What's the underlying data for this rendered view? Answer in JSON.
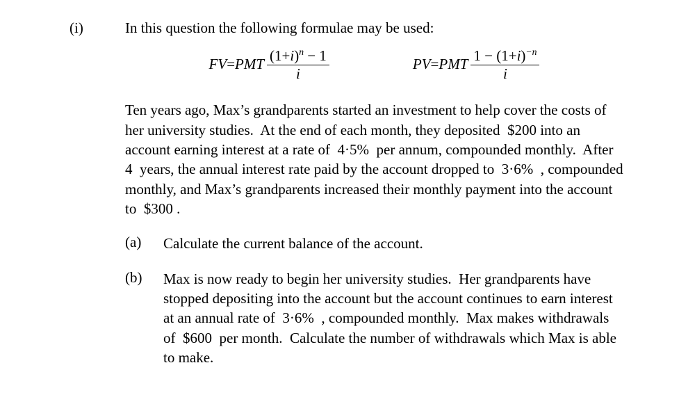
{
  "font": {
    "family": "Times New Roman",
    "size_pt": 16,
    "color": "#000000"
  },
  "background_color": "#ffffff",
  "question_label": "(i)",
  "intro_text": "In this question the following formulae may be used:",
  "formula_fv": {
    "lhs": "FV",
    "eq": " = ",
    "rhs_a": "PMT",
    "num_a": "(1+",
    "num_b": "i",
    "num_c": ")",
    "num_exp": "n",
    "num_d": " − 1",
    "den": "i"
  },
  "formula_pv": {
    "lhs": "PV",
    "eq": " = ",
    "rhs_a": "PMT",
    "num_a": "1 − (1+",
    "num_b": "i",
    "num_c": ")",
    "num_exp": "−n",
    "den": "i"
  },
  "body_para": "Ten years ago, Max’s grandparents started an investment to help cover the costs of her university studies.  At the end of each month, they deposited  $200 into an account earning interest at a rate of  4·5%  per annum, compounded monthly.  After  4  years, the annual interest rate paid by the account dropped to  3·6%  , compounded monthly, and Max’s grandparents increased their monthly payment into the account to  $300 .",
  "part_a": {
    "label": "(a)",
    "text": "Calculate the current balance of the account."
  },
  "part_b": {
    "label": "(b)",
    "text": "Max is now ready to begin her university studies.  Her grandparents have stopped depositing into the account but the account continues to earn interest at an annual rate of  3·6%  , compounded monthly.  Max makes withdrawals of  $600  per month.  Calculate the number of withdrawals which Max is able to make."
  }
}
